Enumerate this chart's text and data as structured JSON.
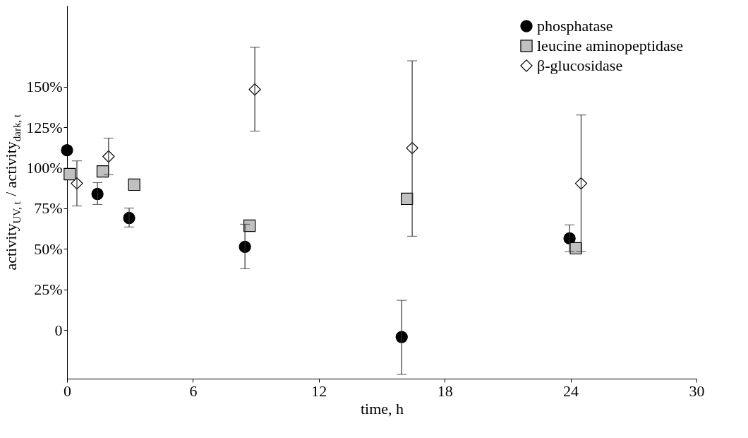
{
  "chart_data": {
    "type": "scatter",
    "xlabel": "time, h",
    "ylabel": "activity$_{UV, t}$ / activity$_{dark, t}$",
    "xlim": [
      0,
      30
    ],
    "xticks": [
      0,
      6,
      12,
      18,
      24,
      30
    ],
    "ylim": [
      -30,
      200
    ],
    "yticks": [
      {
        "value": 0,
        "label": "0"
      },
      {
        "value": 25,
        "label": "25%"
      },
      {
        "value": 50,
        "label": "50%"
      },
      {
        "value": 75,
        "label": "75%"
      },
      {
        "value": 100,
        "label": "100%"
      },
      {
        "value": 125,
        "label": "125%"
      },
      {
        "value": 150,
        "label": "150%"
      }
    ],
    "grid": false,
    "legend": "top right",
    "series": [
      {
        "name": "phosphatase",
        "color": "#000000",
        "marker": "circle",
        "x": [
          0,
          1.45,
          2.96,
          8.48,
          15.95,
          23.95
        ],
        "values": [
          110.9,
          83.9,
          69.1,
          51.3,
          -4.3,
          56.5
        ],
        "errors": [
          null,
          [
            77.4,
            90.9
          ],
          [
            63.5,
            75.2
          ],
          [
            37.8,
            65.2
          ],
          [
            -27.4,
            18.3
          ],
          [
            48.3,
            64.8
          ]
        ]
      },
      {
        "name": "leucine aminopeptidase",
        "color": "#c0c0c0",
        "marker": "square",
        "x": [
          0.13,
          1.7,
          3.2,
          8.7,
          16.2,
          24.25
        ],
        "values": [
          96.1,
          97.8,
          89.6,
          64.3,
          80.9,
          50.4
        ]
      },
      {
        "name": "β-glucosidase",
        "color": "#ffffff",
        "marker": "diamond",
        "x": [
          0.47,
          1.98,
          8.95,
          16.45,
          24.5
        ],
        "values": [
          90.4,
          107,
          148.3,
          112.2,
          90.4
        ],
        "errors": [
          [
            76.5,
            104.3
          ],
          [
            95.7,
            118.3
          ],
          [
            122.6,
            174.3
          ],
          [
            57.8,
            166
          ],
          [
            48.3,
            132.6
          ]
        ]
      }
    ]
  }
}
